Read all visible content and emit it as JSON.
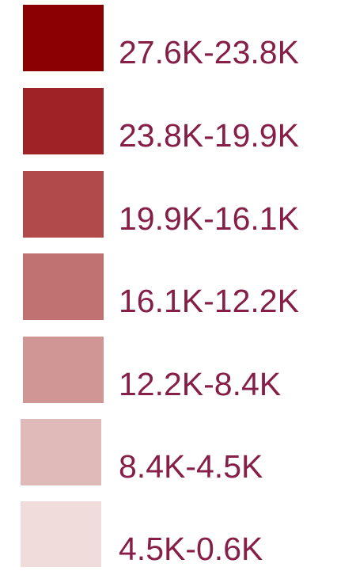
{
  "legend": {
    "items": [
      {
        "label": "27.6K-23.8K",
        "color": "#8b0000"
      },
      {
        "label": "23.8K-19.9K",
        "color": "#9e2226"
      },
      {
        "label": "19.9K-16.1K",
        "color": "#b04a4b"
      },
      {
        "label": "16.1K-12.2K",
        "color": "#c07172"
      },
      {
        "label": "12.2K-8.4K",
        "color": "#d09595"
      },
      {
        "label": "8.4K-4.5K",
        "color": "#e0b9b9"
      },
      {
        "label": "4.5K-0.6K",
        "color": "#f0dcdb"
      }
    ]
  }
}
